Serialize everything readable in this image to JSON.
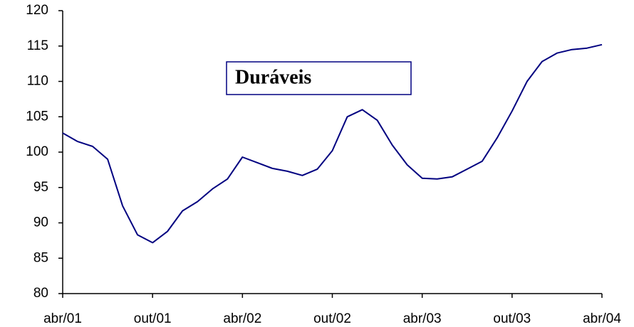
{
  "chart_data": {
    "type": "line",
    "title": "Duráveis",
    "categories": [
      "abr/01",
      null,
      null,
      null,
      null,
      null,
      "out/01",
      null,
      null,
      null,
      null,
      null,
      "abr/02",
      null,
      null,
      null,
      null,
      null,
      "out/02",
      null,
      null,
      null,
      null,
      null,
      "abr/03",
      null,
      null,
      null,
      null,
      null,
      "out/03",
      null,
      null,
      null,
      null,
      null,
      "abr/04"
    ],
    "values": [
      102.7,
      101.5,
      100.8,
      99,
      92.4,
      88.3,
      87.2,
      88.8,
      91.7,
      93,
      94.8,
      96.2,
      99.3,
      98.5,
      97.7,
      97.3,
      96.7,
      97.6,
      100.2,
      105,
      106,
      104.5,
      101,
      98.2,
      96.3,
      96.2,
      96.5,
      97.6,
      98.7,
      102,
      105.8,
      110,
      112.8,
      114,
      114.5,
      114.7,
      115.2
    ],
    "color": "#000080",
    "ylim": [
      80,
      120
    ],
    "yticks": [
      80,
      85,
      90,
      95,
      100,
      105,
      110,
      115,
      120
    ],
    "grid": false
  }
}
